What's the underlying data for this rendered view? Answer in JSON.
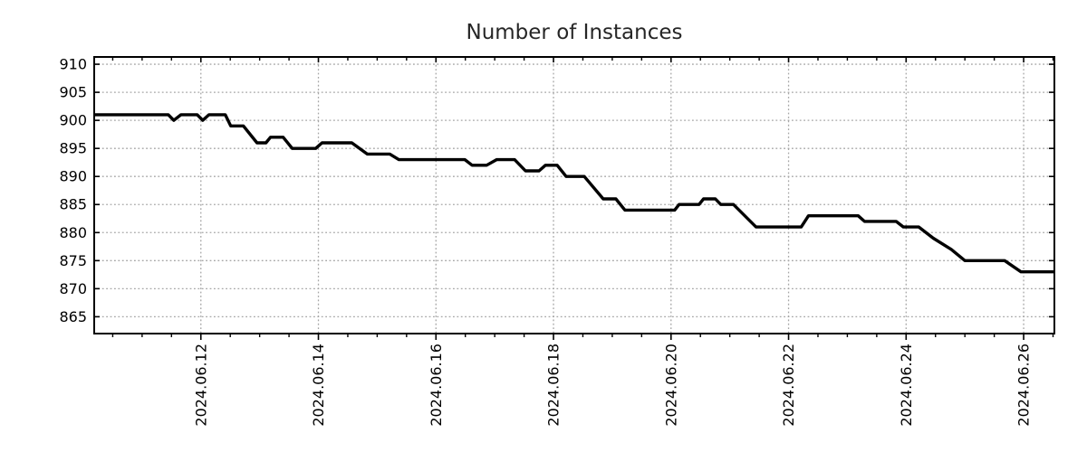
{
  "title": "Number of Instances",
  "colors": {
    "background": "#ffffff",
    "line": "#000000",
    "grid": "#a6a6a6",
    "axis": "#000000",
    "tick_text": "#000000",
    "title_text": "#262626"
  },
  "chart_data": {
    "type": "line",
    "title": "Number of Instances",
    "xlabel": "",
    "ylabel": "",
    "legend": "none",
    "grid": "dotted gridlines at labeled ticks",
    "x_unit": "days since 2024-06-10 00:00",
    "xlim": [
      0.185,
      16.523
    ],
    "ylim": [
      862.0,
      911.3
    ],
    "x_axis": {
      "minor_tick_step": 0.5,
      "major_ticks": [
        {
          "t": 2,
          "label": "2024.06.12"
        },
        {
          "t": 4,
          "label": "2024.06.14"
        },
        {
          "t": 6,
          "label": "2024.06.16"
        },
        {
          "t": 8,
          "label": "2024.06.18"
        },
        {
          "t": 10,
          "label": "2024.06.20"
        },
        {
          "t": 12,
          "label": "2024.06.22"
        },
        {
          "t": 14,
          "label": "2024.06.24"
        },
        {
          "t": 16,
          "label": "2024.06.26"
        }
      ],
      "label_rotation_deg": -90
    },
    "y_axis": {
      "ticks": [
        865,
        870,
        875,
        880,
        885,
        890,
        895,
        900,
        905,
        910
      ]
    },
    "series": [
      {
        "name": "instances",
        "color": "#000000",
        "points": [
          [
            0.185,
            901
          ],
          [
            1.446,
            901
          ],
          [
            1.538,
            900
          ],
          [
            1.662,
            901
          ],
          [
            1.938,
            901
          ],
          [
            2.031,
            900
          ],
          [
            2.138,
            901
          ],
          [
            2.415,
            901
          ],
          [
            2.508,
            899
          ],
          [
            2.723,
            899
          ],
          [
            2.954,
            896
          ],
          [
            3.108,
            896
          ],
          [
            3.185,
            897
          ],
          [
            3.4,
            897
          ],
          [
            3.554,
            895
          ],
          [
            3.954,
            895
          ],
          [
            4.062,
            896
          ],
          [
            4.569,
            896
          ],
          [
            4.831,
            894
          ],
          [
            5.215,
            894
          ],
          [
            5.369,
            893
          ],
          [
            6.492,
            893
          ],
          [
            6.615,
            892
          ],
          [
            6.862,
            892
          ],
          [
            7.031,
            893
          ],
          [
            7.338,
            893
          ],
          [
            7.523,
            891
          ],
          [
            7.754,
            891
          ],
          [
            7.862,
            892
          ],
          [
            8.062,
            892
          ],
          [
            8.215,
            890
          ],
          [
            8.523,
            890
          ],
          [
            8.846,
            886
          ],
          [
            9.062,
            886
          ],
          [
            9.215,
            884
          ],
          [
            10.062,
            884
          ],
          [
            10.138,
            885
          ],
          [
            10.477,
            885
          ],
          [
            10.554,
            886
          ],
          [
            10.754,
            886
          ],
          [
            10.846,
            885
          ],
          [
            11.062,
            885
          ],
          [
            11.446,
            881
          ],
          [
            12.215,
            881
          ],
          [
            12.338,
            883
          ],
          [
            13.185,
            883
          ],
          [
            13.292,
            882
          ],
          [
            13.831,
            882
          ],
          [
            13.954,
            881
          ],
          [
            14.215,
            881
          ],
          [
            14.462,
            879
          ],
          [
            14.769,
            877
          ],
          [
            15.0,
            875
          ],
          [
            15.677,
            875
          ],
          [
            15.954,
            873
          ],
          [
            16.523,
            873
          ]
        ]
      }
    ]
  }
}
